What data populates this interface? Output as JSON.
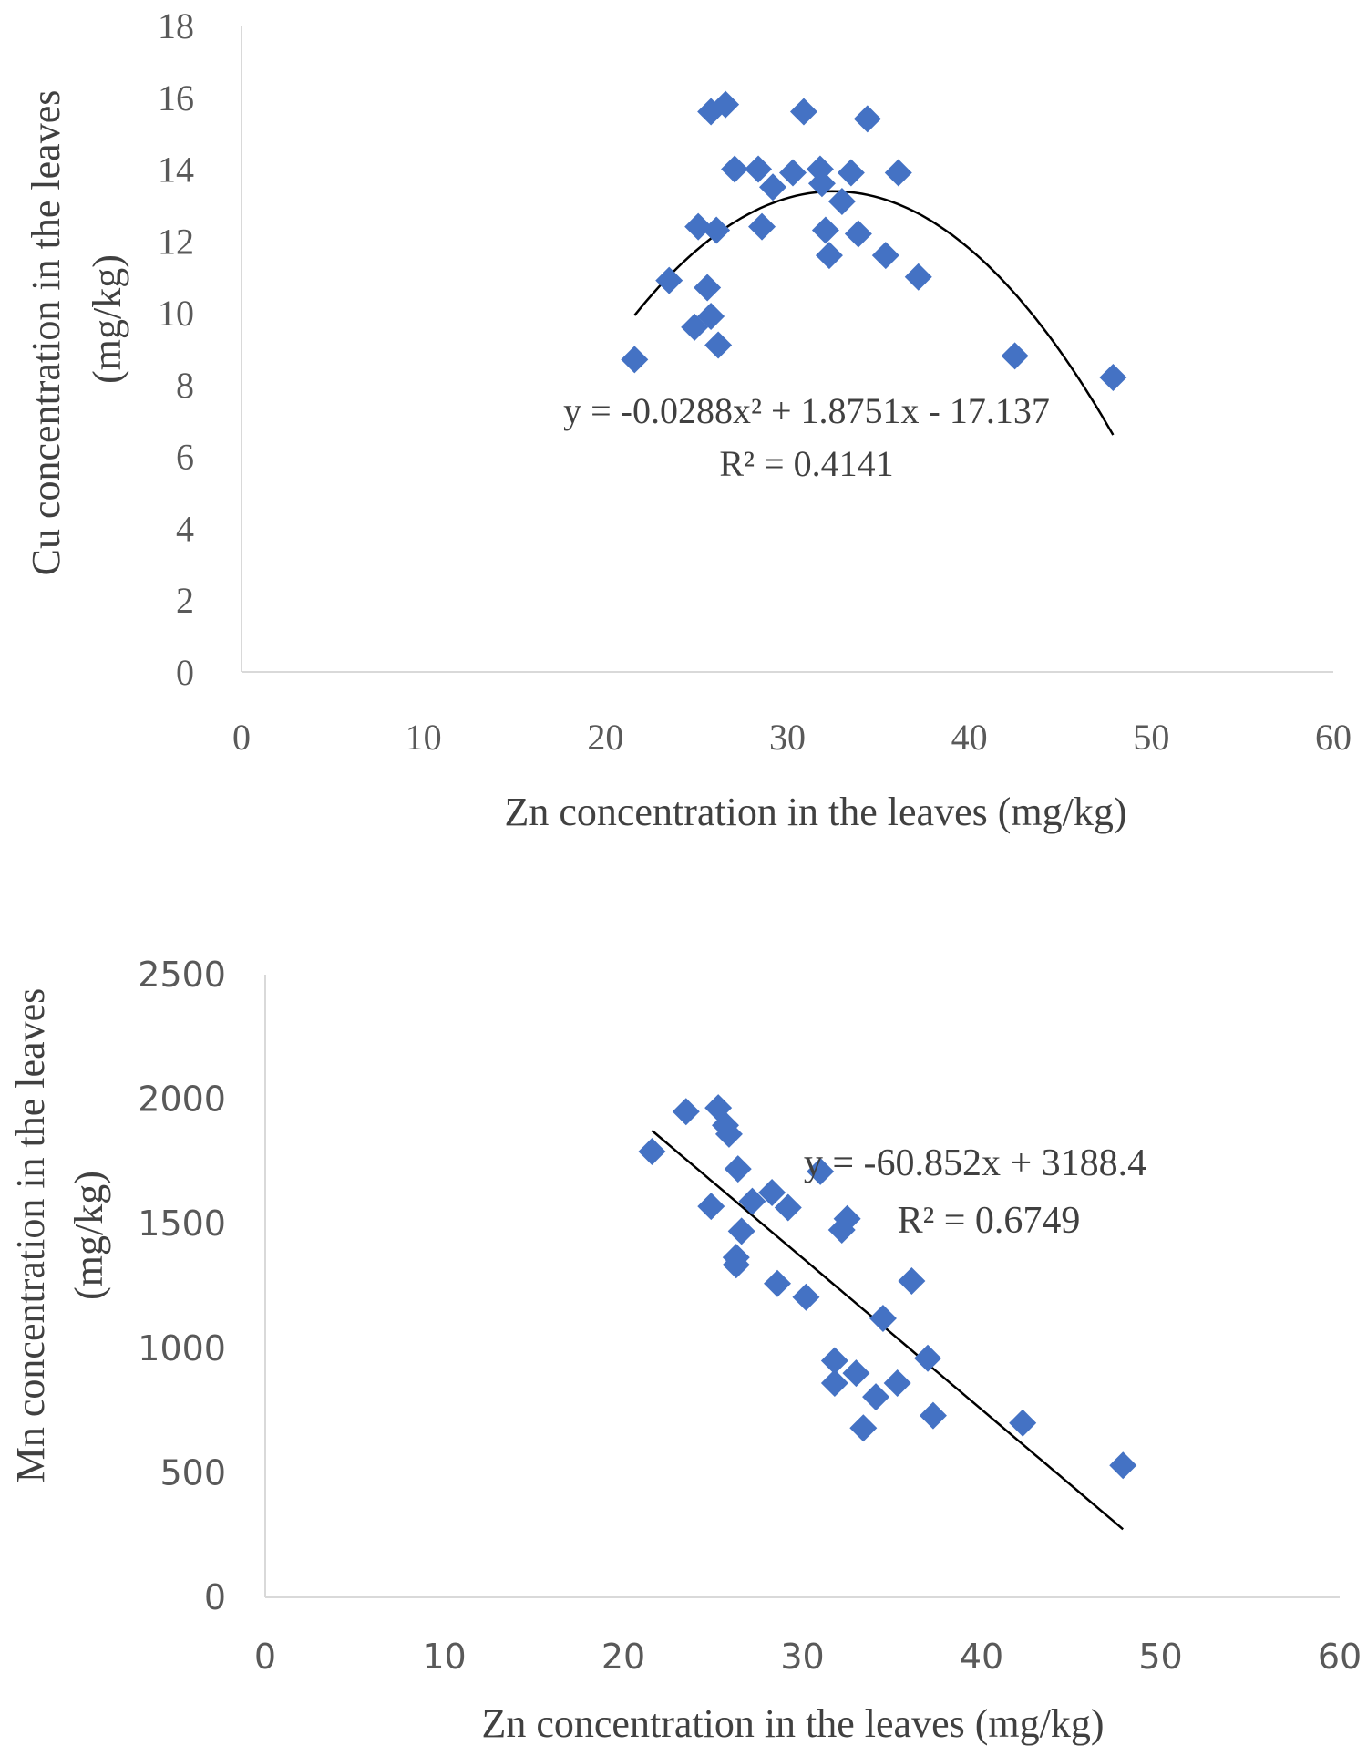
{
  "chart_data": [
    {
      "type": "scatter",
      "title": "",
      "xlabel": "Zn concentration in the leaves (mg/kg)",
      "ylabel": [
        "Cu concentration in the leaves",
        "(mg/kg)"
      ],
      "xlim": [
        0,
        60
      ],
      "ylim": [
        0,
        18
      ],
      "xticks": [
        0,
        10,
        20,
        30,
        40,
        50,
        60
      ],
      "yticks": [
        0,
        2,
        4,
        6,
        8,
        10,
        12,
        14,
        16,
        18
      ],
      "grid": false,
      "marker": "diamond",
      "marker_color": "#4472C4",
      "points": [
        [
          21.6,
          8.7
        ],
        [
          23.5,
          10.9
        ],
        [
          24.9,
          9.6
        ],
        [
          25.1,
          12.4
        ],
        [
          25.6,
          10.7
        ],
        [
          25.8,
          9.9
        ],
        [
          26.1,
          12.3
        ],
        [
          26.2,
          9.1
        ],
        [
          25.8,
          15.6
        ],
        [
          26.6,
          15.8
        ],
        [
          27.1,
          14.0
        ],
        [
          28.4,
          14.0
        ],
        [
          28.6,
          12.4
        ],
        [
          29.2,
          13.5
        ],
        [
          30.3,
          13.9
        ],
        [
          30.9,
          15.6
        ],
        [
          31.8,
          14.0
        ],
        [
          31.9,
          13.6
        ],
        [
          32.1,
          12.3
        ],
        [
          32.3,
          11.6
        ],
        [
          33.0,
          13.1
        ],
        [
          33.5,
          13.9
        ],
        [
          33.9,
          12.2
        ],
        [
          34.4,
          15.4
        ],
        [
          35.4,
          11.6
        ],
        [
          36.1,
          13.9
        ],
        [
          37.2,
          11.0
        ],
        [
          42.5,
          8.8
        ],
        [
          47.9,
          8.2
        ]
      ],
      "trendline": {
        "type": "polynomial",
        "coefficients": [
          -17.137,
          1.8751,
          -0.0288
        ],
        "x_range": [
          21.6,
          47.9
        ],
        "color": "#000000"
      },
      "annotation": {
        "equation": "y = -0.0288x² + 1.8751x - 17.137",
        "r2": "R² = 0.4141"
      }
    },
    {
      "type": "scatter",
      "title": "",
      "xlabel": "Zn concentration in the leaves (mg/kg)",
      "ylabel": [
        "Mn concentration in the leaves",
        "(mg/kg)"
      ],
      "xlim": [
        0,
        60
      ],
      "ylim": [
        0,
        2500
      ],
      "xticks": [
        0,
        10,
        20,
        30,
        40,
        50,
        60
      ],
      "yticks": [
        0,
        500,
        1000,
        1500,
        2000,
        2500
      ],
      "grid": false,
      "marker": "diamond",
      "marker_color": "#4472C4",
      "points": [
        [
          21.6,
          1790
        ],
        [
          23.5,
          1950
        ],
        [
          24.9,
          1570
        ],
        [
          25.3,
          1965
        ],
        [
          25.7,
          1895
        ],
        [
          25.9,
          1860
        ],
        [
          26.3,
          1335
        ],
        [
          26.3,
          1365
        ],
        [
          26.4,
          1720
        ],
        [
          26.6,
          1470
        ],
        [
          27.2,
          1590
        ],
        [
          28.3,
          1625
        ],
        [
          28.6,
          1260
        ],
        [
          29.2,
          1565
        ],
        [
          30.2,
          1205
        ],
        [
          31.0,
          1710
        ],
        [
          31.8,
          950
        ],
        [
          31.8,
          860
        ],
        [
          32.2,
          1475
        ],
        [
          32.5,
          1520
        ],
        [
          33.0,
          900
        ],
        [
          33.4,
          680
        ],
        [
          34.1,
          805
        ],
        [
          34.5,
          1120
        ],
        [
          35.3,
          860
        ],
        [
          36.1,
          1270
        ],
        [
          37.0,
          960
        ],
        [
          37.3,
          730
        ],
        [
          42.3,
          700
        ],
        [
          47.9,
          530
        ]
      ],
      "trendline": {
        "type": "linear",
        "coefficients": [
          3188.4,
          -60.852
        ],
        "x_range": [
          21.6,
          47.9
        ],
        "color": "#000000"
      },
      "annotation": {
        "equation": "y = -60.852x + 3188.4",
        "r2": "R² = 0.6749"
      }
    }
  ]
}
